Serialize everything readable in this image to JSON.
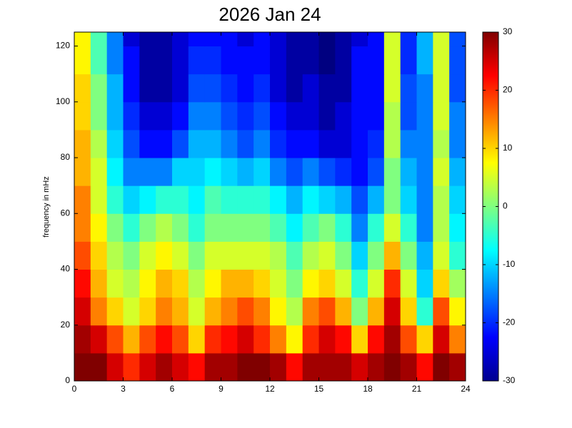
{
  "chart_data": {
    "type": "heatmap",
    "title": "2026 Jan 24",
    "ylabel": "frequency in mHz",
    "xbins": [
      0,
      1,
      2,
      3,
      4,
      5,
      6,
      7,
      8,
      9,
      10,
      11,
      12,
      13,
      14,
      15,
      16,
      17,
      18,
      19,
      20,
      21,
      22,
      23,
      24
    ],
    "ybins": [
      0,
      10,
      20,
      30,
      40,
      50,
      60,
      70,
      80,
      90,
      100,
      110,
      120,
      125
    ],
    "z": [
      [
        30,
        30,
        25,
        20,
        25,
        28,
        25,
        22,
        28,
        28,
        30,
        30,
        28,
        22,
        28,
        28,
        28,
        25,
        28,
        30,
        28,
        22,
        30,
        28
      ],
      [
        28,
        25,
        18,
        12,
        18,
        22,
        18,
        10,
        20,
        22,
        25,
        20,
        15,
        8,
        20,
        25,
        22,
        10,
        22,
        28,
        18,
        10,
        25,
        15
      ],
      [
        25,
        15,
        10,
        5,
        10,
        15,
        12,
        5,
        12,
        15,
        18,
        15,
        8,
        3,
        15,
        18,
        12,
        0,
        12,
        25,
        10,
        -5,
        18,
        8
      ],
      [
        22,
        12,
        5,
        3,
        8,
        12,
        10,
        3,
        8,
        12,
        12,
        10,
        5,
        0,
        8,
        10,
        5,
        -5,
        5,
        20,
        5,
        -10,
        10,
        2
      ],
      [
        18,
        10,
        3,
        0,
        5,
        8,
        5,
        0,
        5,
        5,
        5,
        5,
        3,
        -3,
        3,
        5,
        0,
        -10,
        0,
        12,
        0,
        -12,
        5,
        -5
      ],
      [
        15,
        8,
        0,
        -5,
        0,
        3,
        0,
        -5,
        0,
        0,
        0,
        0,
        -3,
        -8,
        -3,
        0,
        -5,
        -15,
        -5,
        5,
        -5,
        -15,
        3,
        -8
      ],
      [
        15,
        5,
        -5,
        -10,
        -8,
        -5,
        -5,
        -8,
        -3,
        -5,
        -5,
        -5,
        -8,
        -12,
        -8,
        -10,
        -12,
        -18,
        -12,
        0,
        -10,
        -15,
        3,
        -10
      ],
      [
        12,
        5,
        -8,
        -15,
        -15,
        -15,
        -10,
        -10,
        -8,
        -10,
        -12,
        -10,
        -15,
        -18,
        -15,
        -18,
        -20,
        -22,
        -18,
        0,
        -12,
        -15,
        5,
        -12
      ],
      [
        12,
        3,
        -10,
        -18,
        -22,
        -22,
        -18,
        -12,
        -12,
        -15,
        -18,
        -15,
        -20,
        -22,
        -22,
        -25,
        -25,
        -22,
        -20,
        3,
        -15,
        -15,
        3,
        -15
      ],
      [
        10,
        0,
        -12,
        -20,
        -25,
        -25,
        -22,
        -15,
        -15,
        -18,
        -20,
        -18,
        -22,
        -25,
        -25,
        -28,
        -25,
        -22,
        -22,
        3,
        -18,
        -15,
        5,
        -15
      ],
      [
        10,
        0,
        -12,
        -22,
        -28,
        -28,
        -25,
        -18,
        -18,
        -20,
        -22,
        -20,
        -25,
        -28,
        -25,
        -28,
        -28,
        -22,
        -22,
        5,
        -18,
        -15,
        5,
        -18
      ],
      [
        8,
        -3,
        -15,
        -22,
        -28,
        -28,
        -25,
        -20,
        -20,
        -22,
        -22,
        -22,
        -25,
        -28,
        -28,
        -30,
        -28,
        -22,
        -22,
        5,
        -20,
        -12,
        5,
        -18
      ],
      [
        8,
        -3,
        -15,
        -25,
        -28,
        -28,
        -25,
        -22,
        -22,
        -22,
        -25,
        -22,
        -25,
        -28,
        -28,
        -30,
        -28,
        -25,
        -22,
        5,
        -20,
        -12,
        5,
        -18
      ]
    ],
    "xlim": [
      0,
      24
    ],
    "xticks": [
      0,
      3,
      6,
      9,
      12,
      15,
      18,
      21,
      24
    ],
    "ylim": [
      0,
      125
    ],
    "yticks": [
      0,
      20,
      40,
      60,
      80,
      100,
      120
    ],
    "colormap": "jet",
    "zlim": [
      -30,
      30
    ],
    "zticks": [
      30,
      20,
      10,
      0,
      -10,
      -20,
      -30
    ]
  }
}
